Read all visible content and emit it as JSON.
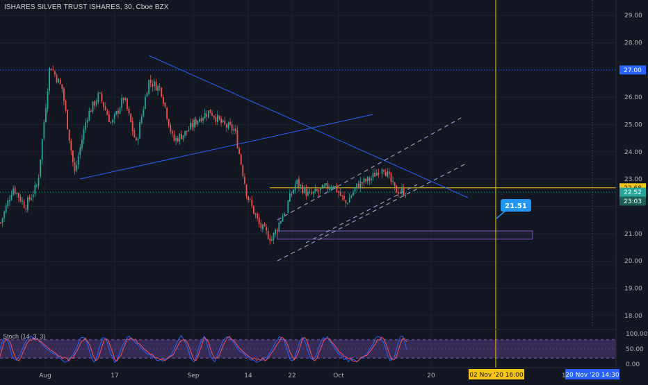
{
  "header": {
    "title": "ISHARES SILVER TRUST ISHARES, 30, Cboe BZX"
  },
  "stoch": {
    "label": "Stoch (14, 3, 3)",
    "ticks": [
      "100.00",
      "50.00",
      "0.00"
    ],
    "bands": [
      80,
      20
    ]
  },
  "colors": {
    "background": "#131722",
    "candle_up": "#26a69a",
    "candle_down": "#ef5350",
    "trendline": "#2962ff",
    "channel": "#9598c9",
    "cursor": "#f5c518",
    "zone_border": "#7e57c2",
    "stoch_k": "#2962ff",
    "stoch_d": "#f7525f",
    "stoch_band": "#7e57c2"
  },
  "chart_data": {
    "type": "candlestick",
    "ylim": [
      17.6,
      29.3
    ],
    "y_ticks": [
      "29.00",
      "28.00",
      "27.00",
      "26.00",
      "25.00",
      "24.00",
      "23.00",
      "22.00",
      "21.00",
      "20.00",
      "19.00",
      "18.00"
    ],
    "x_ticks": [
      "Aug",
      "17",
      "Sep",
      "14",
      "22",
      "Oct",
      "20"
    ],
    "x_labels_extra": [
      "16"
    ],
    "price_path": [
      [
        "late Jul",
        21.4
      ],
      [
        "early Aug",
        22.7
      ],
      [
        "Aug 3",
        22.0
      ],
      [
        "Aug 5",
        22.8
      ],
      [
        "Aug 7",
        27.2
      ],
      [
        "Aug 10",
        26.3
      ],
      [
        "Aug 11",
        23.2
      ],
      [
        "Aug 12",
        25.3
      ],
      [
        "Aug 14",
        26.1
      ],
      [
        "Aug 17",
        25.0
      ],
      [
        "Aug 20",
        26.0
      ],
      [
        "Aug 24",
        24.3
      ],
      [
        "Aug 27",
        26.6
      ],
      [
        "Sep 1",
        26.3
      ],
      [
        "Sep 4",
        24.4
      ],
      [
        "Sep 8",
        24.7
      ],
      [
        "Sep 10",
        25.2
      ],
      [
        "Sep 14",
        25.5
      ],
      [
        "Sep 16",
        25.0
      ],
      [
        "Sep 18",
        24.8
      ],
      [
        "Sep 21",
        22.4
      ],
      [
        "Sep 23",
        21.3
      ],
      [
        "Sep 24",
        20.8
      ],
      [
        "Sep 25",
        21.8
      ],
      [
        "Sep 28",
        22.9
      ],
      [
        "Sep 29",
        22.4
      ],
      [
        "Oct 1",
        22.6
      ],
      [
        "Oct 5",
        22.8
      ],
      [
        "Oct 7",
        22.1
      ],
      [
        "Oct 8",
        22.8
      ],
      [
        "Oct 9",
        23.0
      ],
      [
        "Oct 12",
        23.5
      ],
      [
        "Oct 13",
        22.6
      ],
      [
        "Oct 14",
        22.52
      ]
    ],
    "horizontal_levels": [
      {
        "price": 27.0,
        "label": "27.00",
        "color": "#2962ff"
      },
      {
        "price": 22.68,
        "label": "22.68",
        "color": "#f5c518"
      },
      {
        "price": 22.52,
        "label": "22.52",
        "color": "#26a69a"
      }
    ],
    "countdown_label": "23:03",
    "annotation": {
      "label": "21.51",
      "price": 21.51
    },
    "support_zone": {
      "top": 21.1,
      "bottom": 20.8
    },
    "cursor_label": "02 Nov '20   16:00",
    "range_end_label": "20 Nov '20   14:30"
  }
}
